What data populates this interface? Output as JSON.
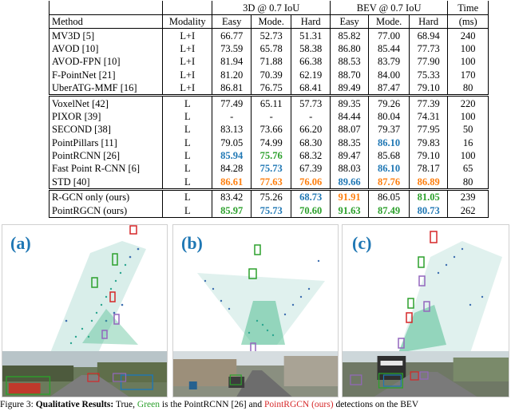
{
  "table": {
    "header1": {
      "group_3d": "3D @ 0.7 IoU",
      "group_bev": "BEV @ 0.7 IoU",
      "time": "Time"
    },
    "header2": {
      "method": "Method",
      "modality": "Modality",
      "easy": "Easy",
      "mode": "Mode.",
      "hard": "Hard",
      "easy_b": "Easy",
      "mode_b": "Mode.",
      "hard_b": "Hard",
      "time_unit": "(ms)"
    },
    "groups": [
      [
        {
          "method": "MV3D [5]",
          "modality": "L+I",
          "cells": [
            [
              "66.77",
              ""
            ],
            [
              "52.73",
              ""
            ],
            [
              "51.31",
              ""
            ],
            [
              "85.82",
              ""
            ],
            [
              "77.00",
              ""
            ],
            [
              "68.94",
              ""
            ],
            [
              "240",
              ""
            ]
          ]
        },
        {
          "method": "AVOD [10]",
          "modality": "L+I",
          "cells": [
            [
              "73.59",
              ""
            ],
            [
              "65.78",
              ""
            ],
            [
              "58.38",
              ""
            ],
            [
              "86.80",
              ""
            ],
            [
              "85.44",
              ""
            ],
            [
              "77.73",
              ""
            ],
            [
              "100",
              ""
            ]
          ]
        },
        {
          "method": "AVOD-FPN [10]",
          "modality": "L+I",
          "cells": [
            [
              "81.94",
              ""
            ],
            [
              "71.88",
              ""
            ],
            [
              "66.38",
              ""
            ],
            [
              "88.53",
              ""
            ],
            [
              "83.79",
              ""
            ],
            [
              "77.90",
              ""
            ],
            [
              "100",
              ""
            ]
          ]
        },
        {
          "method": "F-PointNet [21]",
          "modality": "L+I",
          "cells": [
            [
              "81.20",
              ""
            ],
            [
              "70.39",
              ""
            ],
            [
              "62.19",
              ""
            ],
            [
              "88.70",
              ""
            ],
            [
              "84.00",
              ""
            ],
            [
              "75.33",
              ""
            ],
            [
              "170",
              ""
            ]
          ]
        },
        {
          "method": "UberATG-MMF [16]",
          "modality": "L+I",
          "cells": [
            [
              "86.81",
              ""
            ],
            [
              "76.75",
              ""
            ],
            [
              "68.41",
              ""
            ],
            [
              "89.49",
              ""
            ],
            [
              "87.47",
              ""
            ],
            [
              "79.10",
              ""
            ],
            [
              "80",
              ""
            ]
          ]
        }
      ],
      [
        {
          "method": "VoxelNet [42]",
          "modality": "L",
          "cells": [
            [
              "77.49",
              ""
            ],
            [
              "65.11",
              ""
            ],
            [
              "57.73",
              ""
            ],
            [
              "89.35",
              ""
            ],
            [
              "79.26",
              ""
            ],
            [
              "77.39",
              ""
            ],
            [
              "220",
              ""
            ]
          ]
        },
        {
          "method": "PIXOR [39]",
          "modality": "L",
          "cells": [
            [
              "-",
              ""
            ],
            [
              "-",
              ""
            ],
            [
              "-",
              ""
            ],
            [
              "84.44",
              ""
            ],
            [
              "80.04",
              ""
            ],
            [
              "74.31",
              ""
            ],
            [
              "100",
              ""
            ]
          ]
        },
        {
          "method": "SECOND [38]",
          "modality": "L",
          "cells": [
            [
              "83.13",
              ""
            ],
            [
              "73.66",
              ""
            ],
            [
              "66.20",
              ""
            ],
            [
              "88.07",
              ""
            ],
            [
              "79.37",
              ""
            ],
            [
              "77.95",
              ""
            ],
            [
              "50",
              ""
            ]
          ]
        },
        {
          "method": "PointPillars [11]",
          "modality": "L",
          "cells": [
            [
              "79.05",
              ""
            ],
            [
              "74.99",
              ""
            ],
            [
              "68.30",
              ""
            ],
            [
              "88.35",
              ""
            ],
            [
              "86.10",
              "blue"
            ],
            [
              "79.83",
              ""
            ],
            [
              "16",
              ""
            ]
          ]
        },
        {
          "method": "PointRCNN [26]",
          "modality": "L",
          "cells": [
            [
              "85.94",
              "blue"
            ],
            [
              "75.76",
              "green"
            ],
            [
              "68.32",
              ""
            ],
            [
              "89.47",
              ""
            ],
            [
              "85.68",
              ""
            ],
            [
              "79.10",
              ""
            ],
            [
              "100",
              ""
            ]
          ]
        },
        {
          "method": "Fast Point R-CNN [6]",
          "modality": "L",
          "cells": [
            [
              "84.28",
              ""
            ],
            [
              "75.73",
              "blue"
            ],
            [
              "67.39",
              ""
            ],
            [
              "88.03",
              ""
            ],
            [
              "86.10",
              "blue"
            ],
            [
              "78.17",
              ""
            ],
            [
              "65",
              ""
            ]
          ]
        },
        {
          "method": "STD [40]",
          "modality": "L",
          "cells": [
            [
              "86.61",
              "orange"
            ],
            [
              "77.63",
              "orange"
            ],
            [
              "76.06",
              "orange"
            ],
            [
              "89.66",
              "blue"
            ],
            [
              "87.76",
              "orange"
            ],
            [
              "86.89",
              "orange"
            ],
            [
              "80",
              ""
            ]
          ]
        }
      ],
      [
        {
          "method": "R-GCN only (ours)",
          "modality": "L",
          "cells": [
            [
              "83.42",
              ""
            ],
            [
              "75.26",
              ""
            ],
            [
              "68.73",
              "blue"
            ],
            [
              "91.91",
              "orange"
            ],
            [
              "86.05",
              ""
            ],
            [
              "81.05",
              "green"
            ],
            [
              "239",
              ""
            ]
          ]
        },
        {
          "method": "PointRGCN (ours)",
          "modality": "L",
          "cells": [
            [
              "85.97",
              "green"
            ],
            [
              "75.73",
              "blue"
            ],
            [
              "70.60",
              "green"
            ],
            [
              "91.63",
              "green"
            ],
            [
              "87.49",
              "green"
            ],
            [
              "80.73",
              "blue"
            ],
            [
              "262",
              ""
            ]
          ]
        }
      ]
    ]
  },
  "figure": {
    "panels": [
      {
        "letter": "(a)"
      },
      {
        "letter": "(b)"
      },
      {
        "letter": "(c)"
      }
    ],
    "caption": {
      "prefix": "Figure 3: ",
      "bold": "Qualitative Results:",
      "mid": " True, ",
      "green": "Green",
      "text2": " is the PointRCNN [26] and ",
      "red": "PointRGCN (ours)",
      "text3": " detections on the BEV"
    }
  },
  "colors": {
    "best": "#ff7f0e",
    "second": "#2ca02c",
    "third": "#1f77b4",
    "panel_letter": "#1f77b4"
  }
}
